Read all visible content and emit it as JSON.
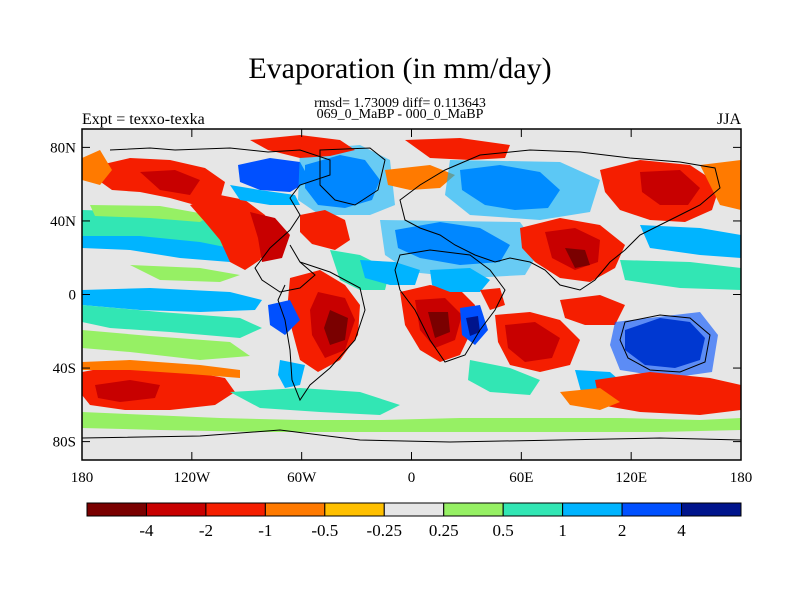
{
  "title": "Evaporation (in mm/day)",
  "stats_line": "rmsd= 1.73009 diff= 0.113643",
  "diff_line": "069_0_MaBP - 000_0_MaBP",
  "left_string": "Expt = texxo-texka",
  "right_string": "JJA",
  "map": {
    "lon_ticks": [
      "180",
      "120W",
      "60W",
      "0",
      "60E",
      "120E",
      "180"
    ],
    "lat_ticks": [
      "80N",
      "40N",
      "0",
      "40S",
      "80S"
    ],
    "lon_range": [
      -180,
      180
    ],
    "lat_range": [
      -90,
      90
    ]
  },
  "colorbar": {
    "colors": [
      "#7a0000",
      "#c80000",
      "#f51e00",
      "#ff7a00",
      "#ffc000",
      "#e6e6e6",
      "#96f064",
      "#32e6b4",
      "#00b4ff",
      "#0050ff",
      "#00148c"
    ],
    "labels": [
      "-4",
      "-2",
      "-1",
      "-0.5",
      "-0.25",
      "0.25",
      "0.5",
      "1",
      "2",
      "4"
    ]
  }
}
